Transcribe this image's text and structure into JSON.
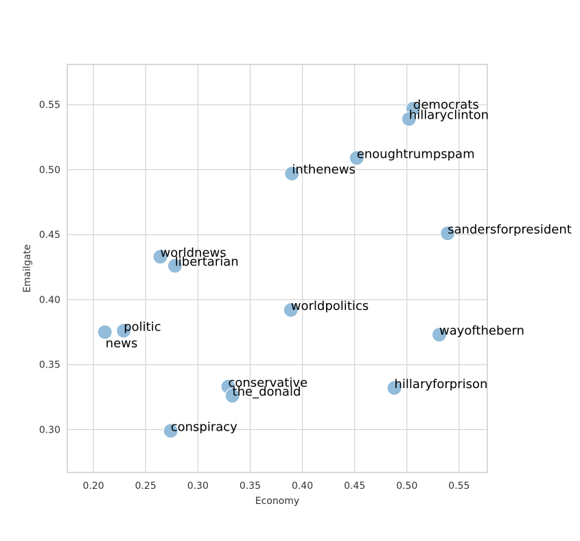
{
  "chart_data": {
    "type": "scatter",
    "title": "",
    "xlabel": "Economy",
    "ylabel": "Emailgate",
    "xlim": [
      0.175,
      0.577
    ],
    "ylim": [
      0.267,
      0.581
    ],
    "xticks": [
      "0.20",
      "0.25",
      "0.30",
      "0.35",
      "0.40",
      "0.45",
      "0.50",
      "0.55"
    ],
    "yticks": [
      "0.30",
      "0.35",
      "0.40",
      "0.45",
      "0.50",
      "0.55"
    ],
    "grid": true,
    "marker_color": "#8cb8d8",
    "points": [
      {
        "label": "democrats",
        "x": 0.506,
        "y": 0.547
      },
      {
        "label": "hillaryclinton",
        "x": 0.502,
        "y": 0.539
      },
      {
        "label": "enoughtrumpspam",
        "x": 0.452,
        "y": 0.509
      },
      {
        "label": "inthenews",
        "x": 0.39,
        "y": 0.497
      },
      {
        "label": "sandersforpresident",
        "x": 0.539,
        "y": 0.451
      },
      {
        "label": "worldnews",
        "x": 0.264,
        "y": 0.433
      },
      {
        "label": "libertarian",
        "x": 0.278,
        "y": 0.426
      },
      {
        "label": "worldpolitics",
        "x": 0.389,
        "y": 0.392
      },
      {
        "label": "politic",
        "x": 0.229,
        "y": 0.376
      },
      {
        "label": "news",
        "x": 0.211,
        "y": 0.375
      },
      {
        "label": "wayofthebern",
        "x": 0.531,
        "y": 0.373
      },
      {
        "label": "conservative",
        "x": 0.329,
        "y": 0.333
      },
      {
        "label": "hillaryforprison",
        "x": 0.488,
        "y": 0.332
      },
      {
        "label": "the_donald",
        "x": 0.333,
        "y": 0.326
      },
      {
        "label": "conspiracy",
        "x": 0.274,
        "y": 0.299
      }
    ]
  }
}
